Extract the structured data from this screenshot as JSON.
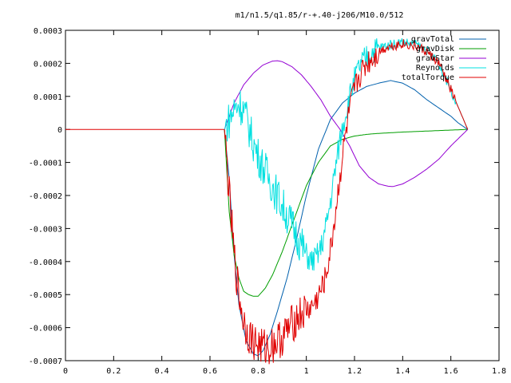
{
  "chart_data": {
    "type": "line",
    "title": "m1/n1.5/q1.85/r-+.40-j206/M10.0/512",
    "xlabel": "",
    "ylabel": "",
    "xlim": [
      0,
      1.8
    ],
    "ylim": [
      -0.0007,
      0.0003
    ],
    "x_ticks": [
      "0",
      "0.2",
      "0.4",
      "0.6",
      "0.8",
      "1",
      "1.2",
      "1.4",
      "1.6",
      "1.8"
    ],
    "x_tick_values": [
      0,
      0.2,
      0.4,
      0.6,
      0.8,
      1.0,
      1.2,
      1.4,
      1.6,
      1.8
    ],
    "y_ticks": [
      "0.0003",
      "0.0002",
      "0.0001",
      "0",
      "-0.0001",
      "-0.0002",
      "-0.0003",
      "-0.0004",
      "-0.0005",
      "-0.0006",
      "-0.0007"
    ],
    "y_tick_values": [
      0.0003,
      0.0002,
      0.0001,
      0,
      -0.0001,
      -0.0002,
      -0.0003,
      -0.0004,
      -0.0005,
      -0.0006,
      -0.0007
    ],
    "grid": false,
    "legend_position": "top-right",
    "series": [
      {
        "name": "gravTotal",
        "color": "#0060ad",
        "noisy": false,
        "x": [
          0.66,
          0.68,
          0.7,
          0.72,
          0.75,
          0.78,
          0.8,
          0.82,
          0.85,
          0.88,
          0.92,
          0.96,
          1.0,
          1.05,
          1.1,
          1.15,
          1.2,
          1.25,
          1.3,
          1.35,
          1.4,
          1.45,
          1.5,
          1.55,
          1.6,
          1.63,
          1.67
        ],
        "y": [
          0,
          -0.00015,
          -0.00038,
          -0.00053,
          -0.00064,
          -0.00068,
          -0.000685,
          -0.00067,
          -0.00062,
          -0.00055,
          -0.00045,
          -0.00033,
          -0.0002,
          -6e-05,
          3e-05,
          8e-05,
          0.00011,
          0.00013,
          0.00014,
          0.000148,
          0.00014,
          0.00012,
          9e-05,
          6.5e-05,
          4e-05,
          2e-05,
          0
        ]
      },
      {
        "name": "gravDisk",
        "color": "#009e00",
        "noisy": false,
        "x": [
          0.66,
          0.68,
          0.7,
          0.72,
          0.74,
          0.76,
          0.78,
          0.8,
          0.83,
          0.86,
          0.9,
          0.95,
          1.0,
          1.05,
          1.1,
          1.15,
          1.2,
          1.25,
          1.3,
          1.4,
          1.5,
          1.6,
          1.67
        ],
        "y": [
          0,
          -0.00025,
          -0.00038,
          -0.00045,
          -0.00049,
          -0.0005,
          -0.000505,
          -0.000505,
          -0.00048,
          -0.00044,
          -0.00037,
          -0.00027,
          -0.00017,
          -0.0001,
          -5e-05,
          -3e-05,
          -2e-05,
          -1.5e-05,
          -1.2e-05,
          -8e-06,
          -5e-06,
          -2e-06,
          0
        ]
      },
      {
        "name": "gravStar",
        "color": "#9400d3",
        "noisy": false,
        "x": [
          0.66,
          0.7,
          0.74,
          0.78,
          0.82,
          0.86,
          0.88,
          0.9,
          0.94,
          0.98,
          1.02,
          1.06,
          1.1,
          1.14,
          1.18,
          1.22,
          1.26,
          1.3,
          1.34,
          1.36,
          1.4,
          1.45,
          1.5,
          1.55,
          1.6,
          1.67
        ],
        "y": [
          0,
          8e-05,
          0.000135,
          0.00017,
          0.000195,
          0.000207,
          0.000208,
          0.000205,
          0.00019,
          0.000165,
          0.00013,
          9e-05,
          4e-05,
          0,
          -5e-05,
          -0.00011,
          -0.000145,
          -0.000165,
          -0.000172,
          -0.000173,
          -0.000165,
          -0.000145,
          -0.00012,
          -9e-05,
          -5e-05,
          0
        ]
      },
      {
        "name": "Reynolds",
        "color": "#00e0e0",
        "noisy": true,
        "x": [
          0.66,
          0.68,
          0.7,
          0.72,
          0.74,
          0.76,
          0.78,
          0.8,
          0.82,
          0.84,
          0.86,
          0.88,
          0.9,
          0.92,
          0.94,
          0.96,
          0.98,
          1.0,
          1.02,
          1.04,
          1.06,
          1.08,
          1.1,
          1.12,
          1.14,
          1.16,
          1.18,
          1.2,
          1.22,
          1.25,
          1.28,
          1.31,
          1.34,
          1.37,
          1.4,
          1.43,
          1.46,
          1.5,
          1.55,
          1.6,
          1.67
        ],
        "y": [
          0,
          3e-05,
          6e-05,
          8e-05,
          6e-05,
          1e-05,
          -4e-05,
          -8e-05,
          -0.00011,
          -0.00014,
          -0.00017,
          -0.0002,
          -0.00023,
          -0.00026,
          -0.00029,
          -0.00032,
          -0.00035,
          -0.00038,
          -0.0004,
          -0.00039,
          -0.00036,
          -0.0003,
          -0.00022,
          -0.00012,
          -3e-05,
          4e-05,
          0.0001,
          0.00015,
          0.00019,
          0.00022,
          0.00024,
          0.00025,
          0.000255,
          0.00026,
          0.000265,
          0.00026,
          0.000255,
          0.00024,
          0.0002,
          0.00012,
          0
        ]
      },
      {
        "name": "totalTorque",
        "color": "#e00000",
        "noisy": true,
        "x": [
          0.66,
          0.68,
          0.7,
          0.72,
          0.74,
          0.76,
          0.78,
          0.8,
          0.82,
          0.84,
          0.86,
          0.88,
          0.9,
          0.92,
          0.94,
          0.96,
          0.98,
          1.0,
          1.02,
          1.04,
          1.06,
          1.08,
          1.1,
          1.12,
          1.14,
          1.16,
          1.18,
          1.2,
          1.22,
          1.25,
          1.28,
          1.31,
          1.34,
          1.37,
          1.4,
          1.43,
          1.46,
          1.5,
          1.55,
          1.6,
          1.67
        ],
        "y": [
          0,
          -0.0002,
          -0.00038,
          -0.0005,
          -0.00058,
          -0.00062,
          -0.00064,
          -0.00065,
          -0.00066,
          -0.00066,
          -0.00065,
          -0.00064,
          -0.00063,
          -0.00061,
          -0.00059,
          -0.00057,
          -0.00056,
          -0.00055,
          -0.00054,
          -0.00052,
          -0.00049,
          -0.00045,
          -0.00037,
          -0.00026,
          -0.00014,
          -3e-05,
          6e-05,
          0.00012,
          0.00016,
          0.0002,
          0.00022,
          0.00024,
          0.00025,
          0.000255,
          0.00026,
          0.000255,
          0.00025,
          0.000235,
          0.0002,
          0.00012,
          0
        ]
      }
    ],
    "pre_series": {
      "name": "zero-baseline",
      "color": "#e00000",
      "x": [
        0,
        0.66
      ],
      "y": [
        0,
        0
      ]
    }
  }
}
